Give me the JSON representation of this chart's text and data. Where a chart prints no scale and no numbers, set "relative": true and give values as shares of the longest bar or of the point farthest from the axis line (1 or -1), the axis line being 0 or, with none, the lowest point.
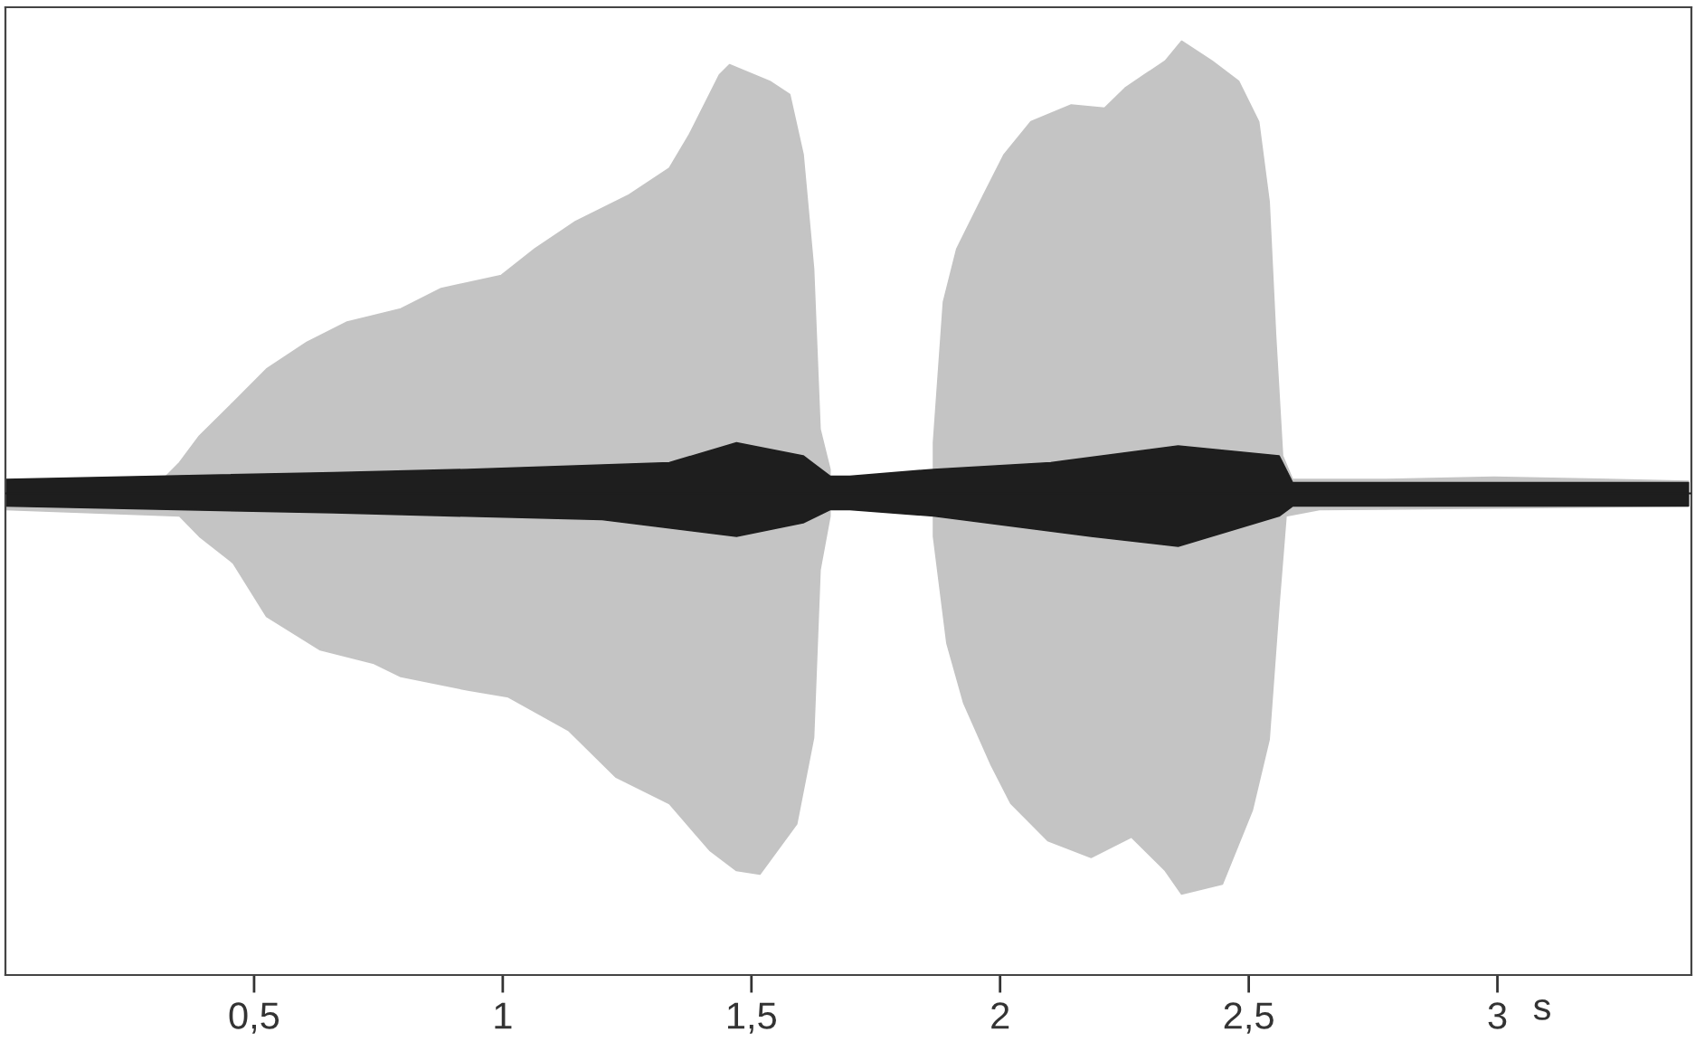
{
  "chart_data": {
    "type": "area",
    "relative": true,
    "xlabel": "s",
    "xlim": [
      0,
      3.39
    ],
    "xticks": [
      {
        "value": 0.5,
        "label": "0,5"
      },
      1,
      {
        "value": 1.5,
        "label": "1,5"
      },
      2,
      {
        "value": 2.5,
        "label": "2,5"
      },
      3
    ],
    "tick_labels": "x",
    "grid": false,
    "series": [
      {
        "color": "#c4c4c4",
        "x": [
          0,
          0.323,
          0.35,
          0.39,
          0.458,
          0.525,
          0.606,
          0.687,
          0.795,
          0.876,
          0.997,
          1.065,
          1.146,
          1.254,
          1.335,
          1.375,
          1.436,
          1.456,
          1.537,
          1.577,
          1.604,
          1.625,
          1.638,
          1.658,
          1.698,
          1.832,
          1.866,
          1.886,
          1.913,
          1.967,
          2.008,
          2.062,
          2.143,
          2.21,
          2.251,
          2.291,
          2.332,
          2.365,
          2.426,
          2.48,
          2.52,
          2.541,
          2.554,
          2.568,
          2.588,
          2.777,
          2.993,
          3.384
        ],
        "values": [
          0.027,
          0.038,
          0.068,
          0.127,
          0.201,
          0.275,
          0.334,
          0.379,
          0.408,
          0.453,
          0.482,
          0.541,
          0.601,
          0.66,
          0.719,
          0.793,
          0.926,
          0.948,
          0.911,
          0.882,
          0.749,
          0.497,
          0.142,
          0.053,
          null,
          null,
          0.112,
          0.423,
          0.541,
          0.66,
          0.749,
          0.822,
          0.859,
          0.852,
          0.896,
          0.926,
          0.956,
          1,
          0.956,
          0.911,
          0.822,
          0.645,
          0.349,
          0.083,
          0.031,
          0.031,
          0.036,
          0.027
        ]
      },
      {
        "color": "#c4c4c4",
        "x": [
          0,
          0.35,
          0.39,
          0.458,
          0.525,
          0.633,
          0.741,
          0.795,
          0.93,
          1.011,
          1.132,
          1.227,
          1.335,
          1.416,
          1.47,
          1.517,
          1.591,
          1.625,
          1.638,
          1.658,
          1.698,
          1.832,
          1.866,
          1.893,
          1.927,
          1.981,
          2.022,
          2.096,
          2.183,
          2.264,
          2.332,
          2.365,
          2.447,
          2.507,
          2.541,
          2.561,
          2.575,
          2.642,
          3.384
        ],
        "values": [
          -0.036,
          -0.05,
          -0.095,
          -0.154,
          -0.272,
          -0.346,
          -0.376,
          -0.405,
          -0.435,
          -0.45,
          -0.524,
          -0.627,
          -0.686,
          -0.789,
          -0.834,
          -0.842,
          -0.731,
          -0.54,
          -0.169,
          -0.05,
          null,
          null,
          -0.095,
          -0.331,
          -0.464,
          -0.598,
          -0.686,
          -0.768,
          -0.805,
          -0.76,
          -0.834,
          -0.886,
          -0.864,
          -0.701,
          -0.544,
          -0.243,
          -0.05,
          -0.036,
          -0.028
        ]
      },
      {
        "color": "#1e1e1e",
        "x": [
          0,
          0.66,
          0.93,
          1.335,
          1.47,
          1.604,
          1.658,
          1.698,
          1.866,
          2.102,
          2.358,
          2.561,
          2.588,
          3.384
        ],
        "values": [
          0.031,
          0.046,
          0.053,
          0.068,
          0.112,
          0.083,
          0.038,
          0.038,
          0.053,
          0.068,
          0.105,
          0.083,
          0.024,
          0.024
        ]
      },
      {
        "color": "#1e1e1e",
        "x": [
          0,
          0.66,
          1.2,
          1.47,
          1.604,
          1.658,
          1.698,
          1.866,
          2.183,
          2.358,
          2.561,
          2.588,
          3.384
        ],
        "values": [
          -0.028,
          -0.043,
          -0.058,
          -0.095,
          -0.065,
          -0.036,
          -0.036,
          -0.05,
          -0.095,
          -0.117,
          -0.05,
          -0.028,
          -0.028
        ]
      }
    ]
  }
}
